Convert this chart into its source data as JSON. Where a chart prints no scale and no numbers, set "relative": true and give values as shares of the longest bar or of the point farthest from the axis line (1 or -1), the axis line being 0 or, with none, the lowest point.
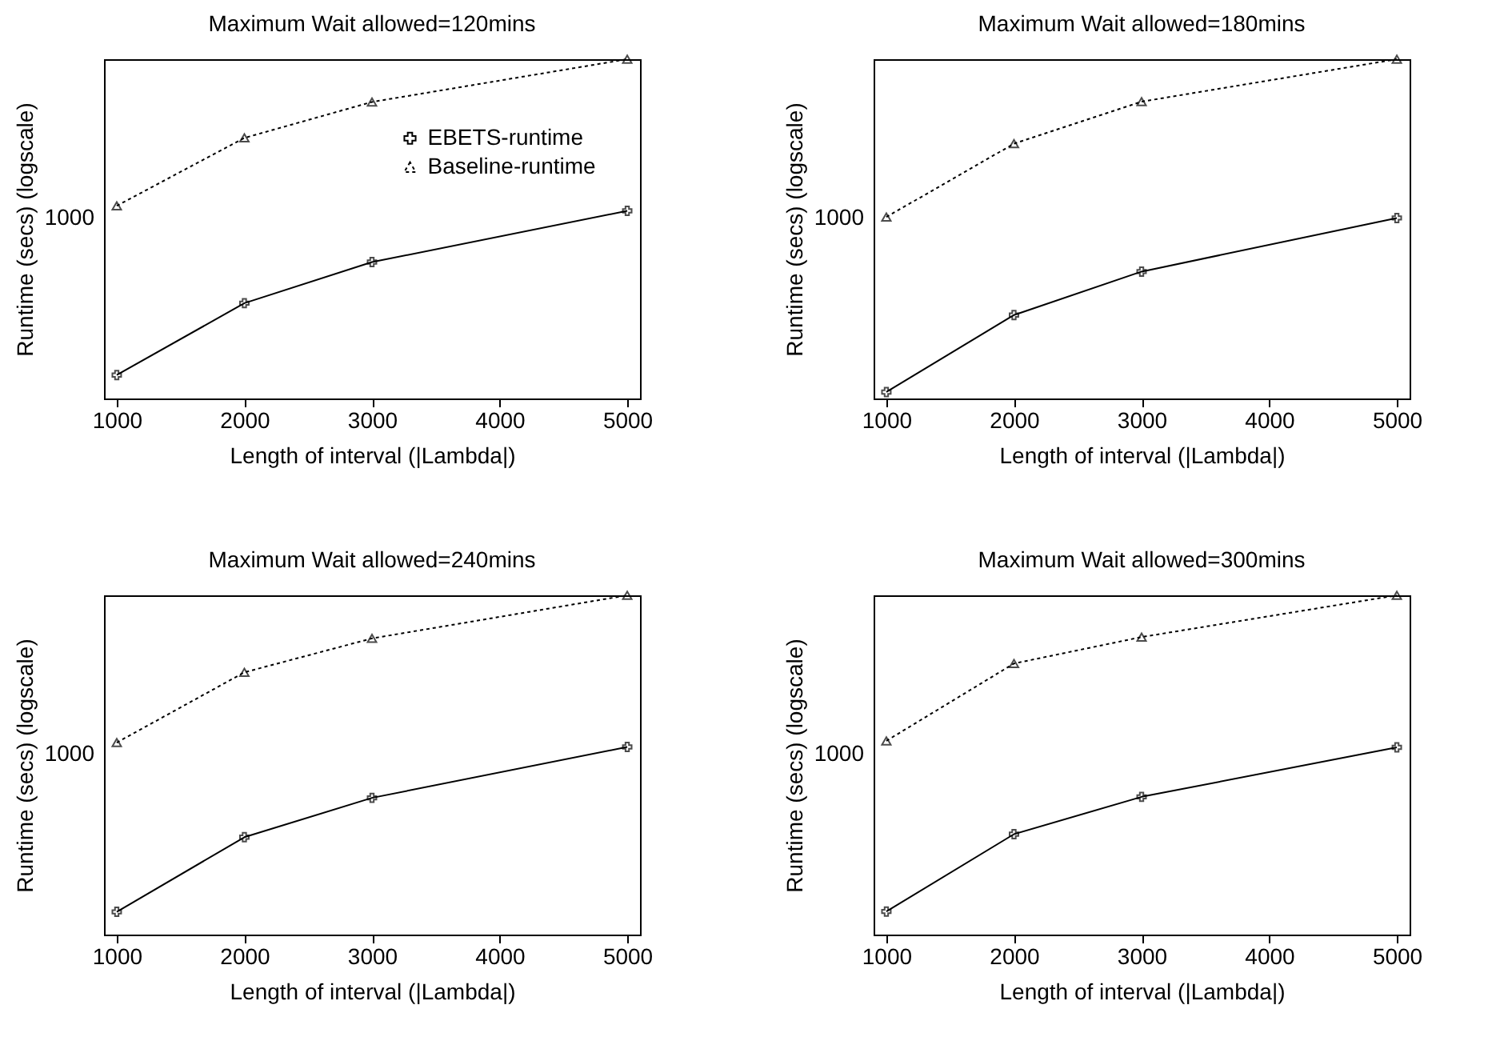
{
  "chart_data": [
    {
      "type": "line",
      "title": "Maximum Wait allowed=120mins",
      "xlabel": "Length of interval (|Lambda|)",
      "ylabel": "Runtime (secs) (logscale)",
      "relative": true,
      "x": [
        1000,
        2000,
        3000,
        5000
      ],
      "xlim": [
        900,
        5100
      ],
      "xticks": [
        1000,
        2000,
        3000,
        4000,
        5000
      ],
      "legend": "right",
      "annotations": [
        "1000"
      ],
      "series": [
        {
          "name": "EBETS-runtime",
          "color": "#000000",
          "marker": "cross",
          "line_style": "solid",
          "values": [
            0.069,
            0.281,
            0.402,
            0.553
          ]
        },
        {
          "name": "Baseline-runtime",
          "color": "#000000",
          "marker": "triangle",
          "line_style": "dotted",
          "values": [
            0.568,
            0.768,
            0.874,
            1.0
          ]
        }
      ]
    },
    {
      "type": "line",
      "title": "Maximum Wait allowed=180mins",
      "xlabel": "Length of interval (|Lambda|)",
      "ylabel": "Runtime (secs) (logscale)",
      "relative": true,
      "x": [
        1000,
        2000,
        3000,
        5000
      ],
      "xlim": [
        900,
        5100
      ],
      "xticks": [
        1000,
        2000,
        3000,
        4000,
        5000
      ],
      "legend": "right",
      "annotations": [
        "1000"
      ],
      "series": [
        {
          "name": "EBETS-runtime",
          "color": "#000000",
          "marker": "cross",
          "line_style": "solid",
          "values": [
            0.019,
            0.246,
            0.374,
            0.532
          ]
        },
        {
          "name": "Baseline-runtime",
          "color": "#000000",
          "marker": "triangle",
          "line_style": "dotted",
          "values": [
            0.535,
            0.751,
            0.875,
            1.0
          ]
        }
      ]
    },
    {
      "type": "line",
      "title": "Maximum Wait allowed=240mins",
      "xlabel": "Length of interval (|Lambda|)",
      "ylabel": "Runtime (secs) (logscale)",
      "relative": true,
      "x": [
        1000,
        2000,
        3000,
        5000
      ],
      "xlim": [
        900,
        5100
      ],
      "xticks": [
        1000,
        2000,
        3000,
        4000,
        5000
      ],
      "legend": "right",
      "annotations": [
        "1000"
      ],
      "series": [
        {
          "name": "EBETS-runtime",
          "color": "#000000",
          "marker": "cross",
          "line_style": "solid",
          "values": [
            0.067,
            0.287,
            0.403,
            0.553
          ]
        },
        {
          "name": "Baseline-runtime",
          "color": "#000000",
          "marker": "triangle",
          "line_style": "dotted",
          "values": [
            0.566,
            0.773,
            0.873,
            1.0
          ]
        }
      ]
    },
    {
      "type": "line",
      "title": "Maximum Wait allowed=300mins",
      "xlabel": "Length of interval (|Lambda|)",
      "ylabel": "Runtime (secs) (logscale)",
      "relative": true,
      "x": [
        1000,
        2000,
        3000,
        5000
      ],
      "xlim": [
        900,
        5100
      ],
      "xticks": [
        1000,
        2000,
        3000,
        4000,
        5000
      ],
      "legend": "right",
      "annotations": [
        "1000"
      ],
      "series": [
        {
          "name": "EBETS-runtime",
          "color": "#000000",
          "marker": "cross",
          "line_style": "solid",
          "values": [
            0.068,
            0.296,
            0.406,
            0.552
          ]
        },
        {
          "name": "Baseline-runtime",
          "color": "#000000",
          "marker": "triangle",
          "line_style": "dotted",
          "values": [
            0.571,
            0.799,
            0.877,
            1.0
          ]
        }
      ]
    }
  ]
}
